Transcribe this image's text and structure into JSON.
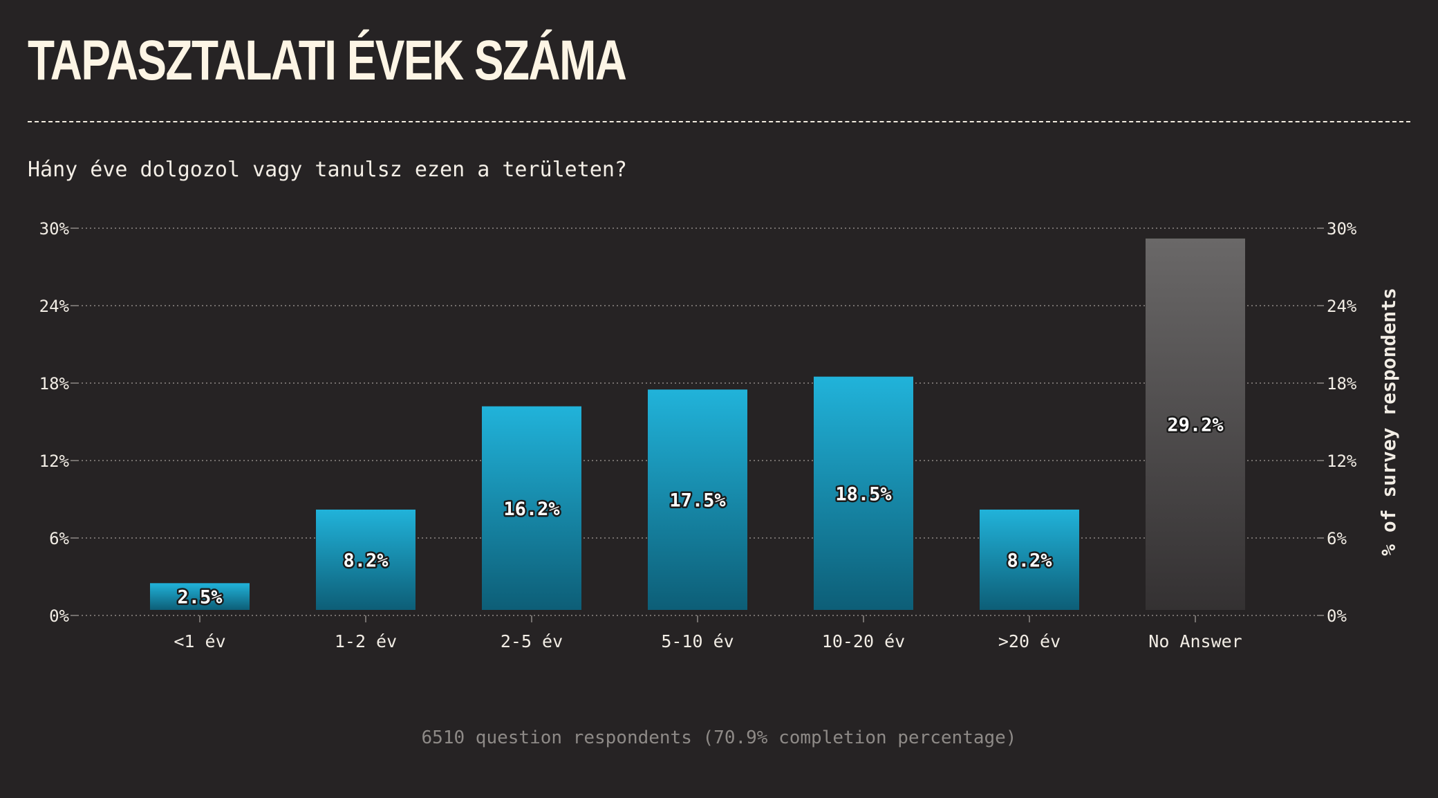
{
  "title": "TAPASZTALATI ÉVEK SZÁMA",
  "subtitle": "Hány éve dolgozol vagy tanulsz ezen a területen?",
  "footer": "6510 question respondents (70.9% completion percentage)",
  "chart_data": {
    "type": "bar",
    "categories": [
      "<1 év",
      "1-2 év",
      "2-5 év",
      "5-10 év",
      "10-20 év",
      ">20 év",
      "No Answer"
    ],
    "values": [
      2.5,
      8.2,
      16.2,
      17.5,
      18.5,
      8.2,
      29.2
    ],
    "value_labels": [
      "2.5%",
      "8.2%",
      "16.2%",
      "17.5%",
      "18.5%",
      "8.2%",
      "29.2%"
    ],
    "ylim": [
      0,
      30
    ],
    "y_ticks": [
      0,
      6,
      12,
      18,
      24,
      30
    ],
    "y_tick_labels": [
      "0%",
      "6%",
      "12%",
      "18%",
      "24%",
      "30%"
    ],
    "y2label": "% of survey respondents",
    "grid": true,
    "colors": {
      "bar_top": "#21b3da",
      "bar_bottom": "#0d5e77",
      "no_answer_top": "#6a6868",
      "no_answer_bottom": "#343132",
      "grid": "#8f8a87",
      "text": "#f2ede5"
    }
  }
}
